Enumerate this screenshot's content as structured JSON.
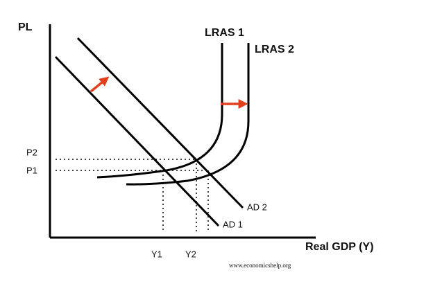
{
  "axes": {
    "y_label": "PL",
    "x_label": "Real GDP (Y)"
  },
  "curves": [
    {
      "label": "LRAS 1"
    },
    {
      "label": "LRAS 2"
    },
    {
      "label": "AD 1"
    },
    {
      "label": "AD 2"
    }
  ],
  "y_levels": [
    "P2",
    "P1"
  ],
  "x_levels": [
    "Y1",
    "Y2"
  ],
  "source": "www.economicshelp.org"
}
